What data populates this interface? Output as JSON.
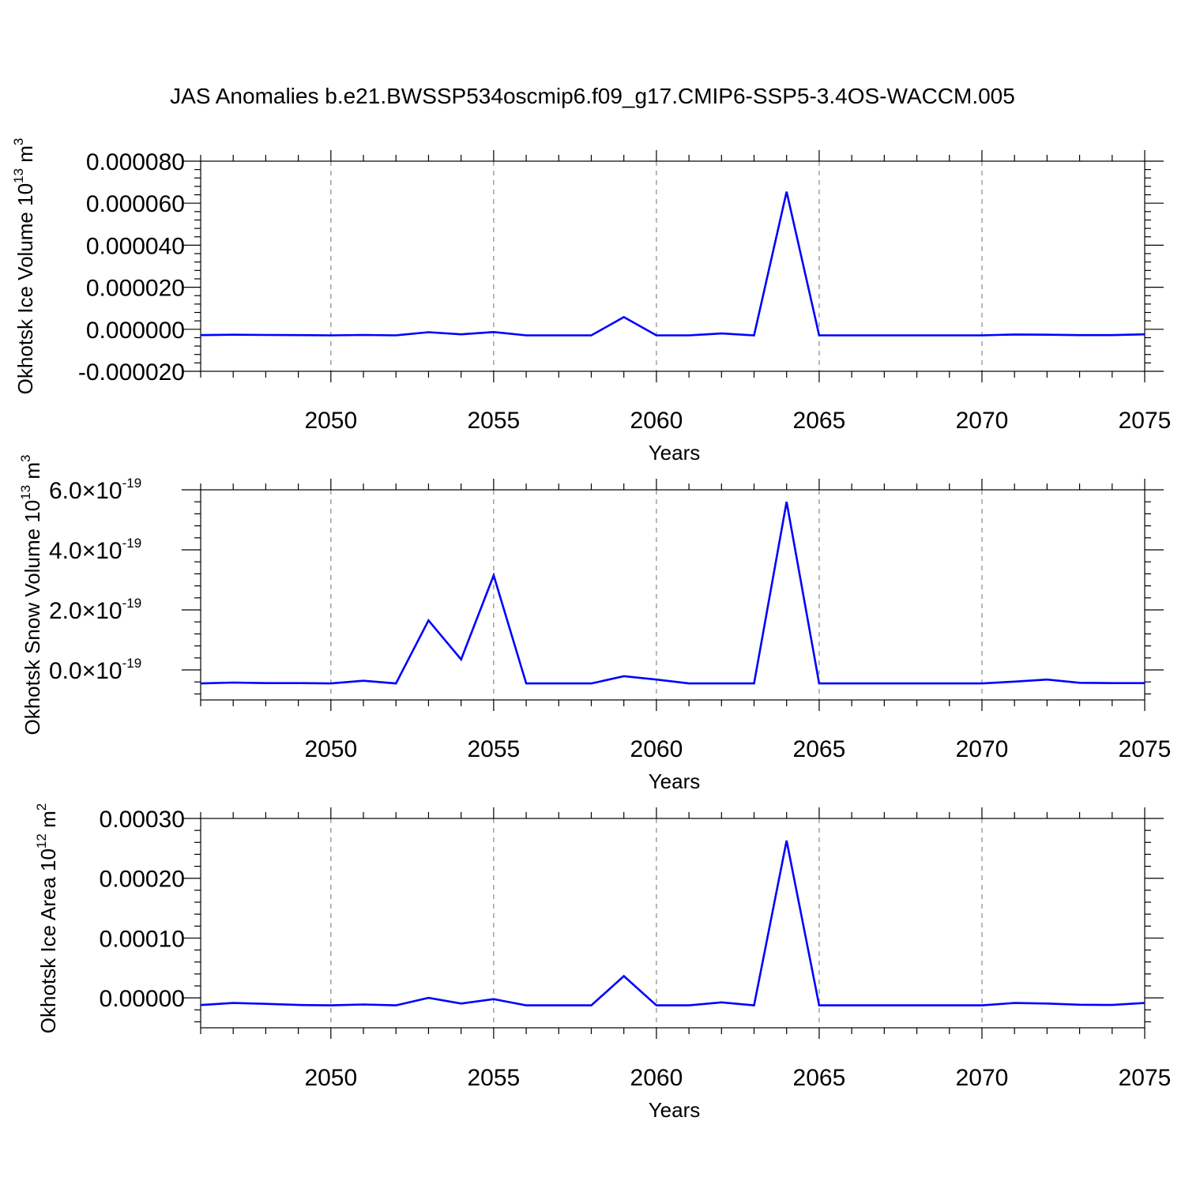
{
  "title": "JAS Anomalies b.e21.BWSSP534oscmip6.f09_g17.CMIP6-SSP5-3.4OS-WACCM.005",
  "line_color": "#0000ff",
  "chart_data": [
    {
      "type": "line",
      "xlabel": "Years",
      "ylabel": "Okhotsk Ice Volume 10",
      "ylabel_exp": "13",
      "ylabel_unit": " m",
      "ylabel_unit_exp": "3",
      "xlim": [
        2046,
        2075
      ],
      "ylim": [
        -2e-05,
        8e-05
      ],
      "xticks": [
        2050,
        2055,
        2060,
        2065,
        2070,
        2075
      ],
      "xtick_labels": [
        "2050",
        "2055",
        "2060",
        "2065",
        "2070",
        "2075"
      ],
      "yticks": [
        -2e-05,
        0.0,
        2e-05,
        4e-05,
        6e-05,
        8e-05
      ],
      "ytick_labels": [
        "-0.000020",
        "0.000000",
        "0.000020",
        "0.000040",
        "0.000060",
        "0.000080"
      ],
      "ytick_suffix": "",
      "y_minor_step": 4e-06,
      "vertical_grid": [
        2050,
        2055,
        2060,
        2065,
        2070
      ],
      "x": [
        2046,
        2047,
        2048,
        2049,
        2050,
        2051,
        2052,
        2053,
        2054,
        2055,
        2056,
        2057,
        2058,
        2059,
        2060,
        2061,
        2062,
        2063,
        2064,
        2065,
        2066,
        2067,
        2068,
        2069,
        2070,
        2071,
        2072,
        2073,
        2074,
        2075
      ],
      "values": [
        -2.8e-06,
        -2.6e-06,
        -2.7e-06,
        -2.8e-06,
        -2.9e-06,
        -2.7e-06,
        -2.9e-06,
        -1.4e-06,
        -2.4e-06,
        -1.3e-06,
        -2.9e-06,
        -2.9e-06,
        -2.9e-06,
        5.8e-06,
        -2.9e-06,
        -2.9e-06,
        -2e-06,
        -2.9e-06,
        6.55e-05,
        -2.9e-06,
        -2.9e-06,
        -2.9e-06,
        -2.9e-06,
        -2.9e-06,
        -2.9e-06,
        -2.5e-06,
        -2.6e-06,
        -2.8e-06,
        -2.8e-06,
        -2.4e-06
      ]
    },
    {
      "type": "line",
      "xlabel": "Years",
      "ylabel": "Okhotsk Snow Volume 10",
      "ylabel_exp": "13",
      "ylabel_unit": " m",
      "ylabel_unit_exp": "3",
      "xlim": [
        2046,
        2075
      ],
      "ylim": [
        -1e-19,
        6e-19
      ],
      "xticks": [
        2050,
        2055,
        2060,
        2065,
        2070,
        2075
      ],
      "xtick_labels": [
        "2050",
        "2055",
        "2060",
        "2065",
        "2070",
        "2075"
      ],
      "yticks": [
        0.0,
        2e-19,
        4e-19,
        6e-19
      ],
      "ytick_labels": [
        "0.0",
        "2.0",
        "4.0",
        "6.0"
      ],
      "ytick_suffix": "×10",
      "ytick_exp": "-19",
      "y_minor_step": 4e-20,
      "vertical_grid": [
        2050,
        2055,
        2060,
        2065,
        2070
      ],
      "x": [
        2046,
        2047,
        2048,
        2049,
        2050,
        2051,
        2052,
        2053,
        2054,
        2055,
        2056,
        2057,
        2058,
        2059,
        2060,
        2061,
        2062,
        2063,
        2064,
        2065,
        2066,
        2067,
        2068,
        2069,
        2070,
        2071,
        2072,
        2073,
        2074,
        2075
      ],
      "values": [
        -4.5e-20,
        -4.2e-20,
        -4.4e-20,
        -4.4e-20,
        -4.5e-20,
        -3.6e-20,
        -4.5e-20,
        1.65e-19,
        3.5e-20,
        3.15e-19,
        -4.5e-20,
        -4.5e-20,
        -4.5e-20,
        -2.1e-20,
        -3.2e-20,
        -4.5e-20,
        -4.5e-20,
        -4.5e-20,
        5.6e-19,
        -4.5e-20,
        -4.5e-20,
        -4.5e-20,
        -4.5e-20,
        -4.5e-20,
        -4.5e-20,
        -3.9e-20,
        -3.2e-20,
        -4.3e-20,
        -4.4e-20,
        -4.4e-20
      ]
    },
    {
      "type": "line",
      "xlabel": "Years",
      "ylabel": "Okhotsk Ice Area 10",
      "ylabel_exp": "12",
      "ylabel_unit": " m",
      "ylabel_unit_exp": "2",
      "xlim": [
        2046,
        2075
      ],
      "ylim": [
        -5e-05,
        0.0003
      ],
      "xticks": [
        2050,
        2055,
        2060,
        2065,
        2070,
        2075
      ],
      "xtick_labels": [
        "2050",
        "2055",
        "2060",
        "2065",
        "2070",
        "2075"
      ],
      "yticks": [
        0.0,
        0.0001,
        0.0002,
        0.0003
      ],
      "ytick_labels": [
        "0.00000",
        "0.00010",
        "0.00020",
        "0.00030"
      ],
      "ytick_suffix": "",
      "y_minor_step": 2e-05,
      "vertical_grid": [
        2050,
        2055,
        2060,
        2065,
        2070
      ],
      "x": [
        2046,
        2047,
        2048,
        2049,
        2050,
        2051,
        2052,
        2053,
        2054,
        2055,
        2056,
        2057,
        2058,
        2059,
        2060,
        2061,
        2062,
        2063,
        2064,
        2065,
        2066,
        2067,
        2068,
        2069,
        2070,
        2071,
        2072,
        2073,
        2074,
        2075
      ],
      "values": [
        -1.2e-05,
        -8.5e-06,
        -1e-05,
        -1.18e-05,
        -1.25e-05,
        -1.1e-05,
        -1.25e-05,
        0.0,
        -9.5e-06,
        -2e-06,
        -1.25e-05,
        -1.25e-05,
        -1.25e-05,
        3.65e-05,
        -1.25e-05,
        -1.25e-05,
        -7.5e-06,
        -1.25e-05,
        0.000263,
        -1.25e-05,
        -1.25e-05,
        -1.25e-05,
        -1.25e-05,
        -1.25e-05,
        -1.25e-05,
        -8.5e-06,
        -9.5e-06,
        -1.15e-05,
        -1.18e-05,
        -8.5e-06
      ]
    }
  ]
}
